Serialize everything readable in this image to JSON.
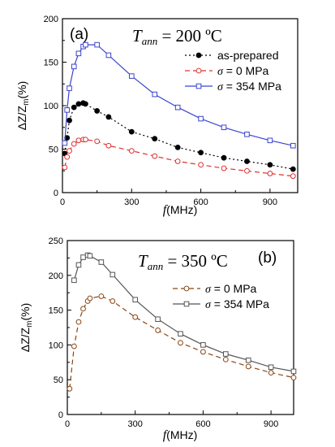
{
  "chart_data": [
    {
      "type": "line",
      "panel_label": "(a)",
      "title": {
        "main": "T",
        "sub": "ann",
        "rest": " = 200 ºC"
      },
      "xlabel": {
        "var": "f",
        "unit": "(MHz)"
      },
      "ylabel": {
        "prefix": "ΔZ/Z",
        "sub": "m",
        "unit": "(%)"
      },
      "xlim": [
        0,
        1020
      ],
      "ylim": [
        0,
        200
      ],
      "xticks": [
        0,
        300,
        600,
        900
      ],
      "yticks": [
        0,
        50,
        100,
        150,
        200
      ],
      "grid": false,
      "legend_position": "top-right",
      "series": [
        {
          "name": "as-prepared",
          "legend_prefix": "",
          "color": "#000000",
          "style": "dotted",
          "marker": "filled-circle",
          "x": [
            10,
            20,
            30,
            50,
            70,
            90,
            100,
            150,
            200,
            300,
            400,
            500,
            600,
            700,
            800,
            900,
            1000
          ],
          "y": [
            45,
            63,
            83,
            98,
            102,
            103,
            102,
            94,
            87,
            70,
            62,
            52,
            46,
            40,
            36,
            32,
            27
          ]
        },
        {
          "name": "= 0 MPa",
          "legend_prefix": "σ",
          "color": "#e03030",
          "style": "dashed",
          "marker": "open-circle",
          "x": [
            10,
            20,
            30,
            50,
            70,
            90,
            100,
            150,
            200,
            300,
            400,
            500,
            600,
            700,
            800,
            900,
            1000
          ],
          "y": [
            29,
            41,
            48,
            56,
            60,
            61,
            61,
            59,
            54,
            48,
            42,
            36,
            32,
            28,
            25,
            22,
            19
          ]
        },
        {
          "name": "= 354 MPa",
          "legend_prefix": "σ",
          "color": "#3b45cc",
          "style": "solid",
          "marker": "open-square",
          "x": [
            10,
            20,
            30,
            50,
            70,
            90,
            100,
            150,
            200,
            300,
            400,
            500,
            600,
            700,
            800,
            900,
            1000
          ],
          "y": [
            57,
            95,
            120,
            145,
            160,
            168,
            170,
            170,
            158,
            134,
            113,
            98,
            85,
            75,
            67,
            60,
            54
          ]
        }
      ]
    },
    {
      "type": "line",
      "panel_label": "(b)",
      "title": {
        "main": "T",
        "sub": "ann",
        "rest": " = 350 ºC"
      },
      "xlabel": {
        "var": "f",
        "unit": "(MHz)"
      },
      "ylabel": {
        "prefix": "ΔZ/Z",
        "sub": "m",
        "unit": "(%)"
      },
      "xlim": [
        0,
        1000
      ],
      "ylim": [
        0,
        250
      ],
      "xticks": [
        0,
        300,
        600,
        900
      ],
      "yticks": [
        0,
        50,
        100,
        150,
        200,
        250
      ],
      "grid": false,
      "legend_position": "right",
      "series": [
        {
          "name": "= 0 MPa",
          "legend_prefix": "σ",
          "color": "#8b4513",
          "style": "dashed",
          "marker": "open-circle",
          "x": [
            10,
            30,
            50,
            70,
            90,
            100,
            150,
            200,
            300,
            400,
            500,
            600,
            700,
            800,
            900,
            1000
          ],
          "y": [
            37,
            98,
            133,
            152,
            163,
            167,
            170,
            163,
            140,
            121,
            103,
            90,
            79,
            69,
            60,
            53
          ]
        },
        {
          "name": "= 354 MPa",
          "legend_prefix": "σ",
          "color": "#555555",
          "style": "solid",
          "marker": "open-square",
          "x": [
            30,
            50,
            70,
            90,
            100,
            150,
            200,
            300,
            400,
            500,
            600,
            700,
            800,
            900,
            1000
          ],
          "y": [
            193,
            215,
            226,
            229,
            228,
            219,
            201,
            165,
            137,
            116,
            100,
            87,
            78,
            68,
            62
          ]
        }
      ]
    }
  ]
}
